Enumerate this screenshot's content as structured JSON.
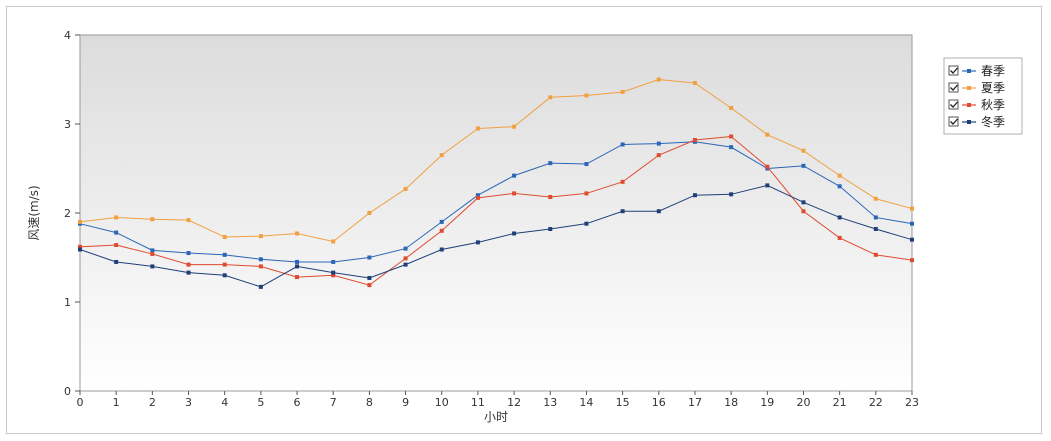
{
  "chart_data": {
    "type": "line",
    "title": "",
    "xlabel": "小时",
    "ylabel": "风速(m/s)",
    "x": [
      0,
      1,
      2,
      3,
      4,
      5,
      6,
      7,
      8,
      9,
      10,
      11,
      12,
      13,
      14,
      15,
      16,
      17,
      18,
      19,
      20,
      21,
      22,
      23
    ],
    "xlim": [
      0,
      23
    ],
    "ylim": [
      0,
      4
    ],
    "yticks": [
      0,
      1,
      2,
      3,
      4
    ],
    "grid": false,
    "legend_position": "right",
    "series": [
      {
        "name": "春季",
        "color": "#2a66b8",
        "values": [
          1.88,
          1.78,
          1.58,
          1.55,
          1.53,
          1.48,
          1.45,
          1.45,
          1.5,
          1.6,
          1.9,
          2.2,
          2.42,
          2.56,
          2.55,
          2.77,
          2.78,
          2.8,
          2.74,
          2.5,
          2.53,
          2.3,
          1.95,
          1.88
        ]
      },
      {
        "name": "夏季",
        "color": "#f0a040",
        "values": [
          1.9,
          1.95,
          1.93,
          1.92,
          1.73,
          1.74,
          1.77,
          1.68,
          2.0,
          2.27,
          2.65,
          2.95,
          2.97,
          3.3,
          3.32,
          3.36,
          3.5,
          3.46,
          3.18,
          2.88,
          2.7,
          2.42,
          2.16,
          2.05
        ]
      },
      {
        "name": "秋季",
        "color": "#e04a30",
        "values": [
          1.62,
          1.64,
          1.54,
          1.42,
          1.42,
          1.4,
          1.28,
          1.3,
          1.19,
          1.49,
          1.8,
          2.17,
          2.22,
          2.18,
          2.22,
          2.35,
          2.65,
          2.82,
          2.86,
          2.52,
          2.02,
          1.72,
          1.53,
          1.47
        ]
      },
      {
        "name": "冬季",
        "color": "#1f3f78",
        "values": [
          1.59,
          1.45,
          1.4,
          1.33,
          1.3,
          1.17,
          1.4,
          1.33,
          1.27,
          1.42,
          1.59,
          1.67,
          1.77,
          1.82,
          1.88,
          2.02,
          2.02,
          2.2,
          2.21,
          2.31,
          2.12,
          1.95,
          1.82,
          1.7
        ]
      }
    ]
  }
}
